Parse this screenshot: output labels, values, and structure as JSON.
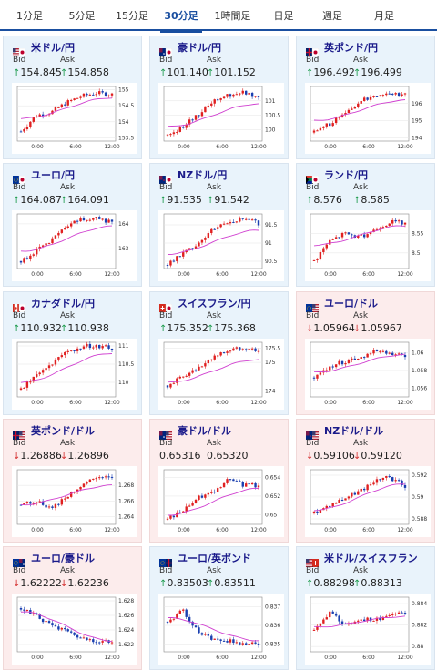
{
  "tabs": [
    {
      "label": "1分足",
      "active": false
    },
    {
      "label": "5分足",
      "active": false
    },
    {
      "label": "15分足",
      "active": false
    },
    {
      "label": "30分足",
      "active": true
    },
    {
      "label": "1時間足",
      "active": false
    },
    {
      "label": "日足",
      "active": false
    },
    {
      "label": "週足",
      "active": false
    },
    {
      "label": "月足",
      "active": false
    }
  ],
  "labels": {
    "bid": "Bid",
    "ask": "Ask"
  },
  "colors": {
    "up_arrow": "#1b9a4b",
    "down_arrow": "#d43030",
    "candle_up": "#e02020",
    "candle_down": "#1a3fb0",
    "ma": "#d040d0"
  },
  "pairs": [
    {
      "name": "米ドル/円",
      "theme": "blue",
      "flag": "us-jp",
      "bid": "154.845",
      "ask": "154.858",
      "dir": "up",
      "bid_dir": "up",
      "ask_dir": "up",
      "yticks": [
        "155",
        "154.5",
        "154",
        "153.5"
      ],
      "ymin": 153.4,
      "ymax": 155.1,
      "xticks": [
        "0:00",
        "6:00",
        "12:00"
      ],
      "trend": [
        153.7,
        154.2,
        154.3,
        154.6,
        154.8,
        154.9,
        154.85
      ],
      "ma_from": 154.1,
      "ma_to": 154.75
    },
    {
      "name": "豪ドル/円",
      "theme": "blue",
      "flag": "au-jp",
      "bid": "101.140",
      "ask": "101.152",
      "bid_dir": "up",
      "ask_dir": "up",
      "yticks": [
        "101",
        "100.5",
        "100"
      ],
      "ymin": 99.6,
      "ymax": 101.5,
      "xticks": [
        "0:00",
        "6:00",
        "12:00"
      ],
      "trend": [
        99.8,
        100.1,
        100.5,
        101.0,
        101.2,
        101.3,
        101.15
      ],
      "ma_from": 100.1,
      "ma_to": 100.9
    },
    {
      "name": "英ポンド/円",
      "theme": "blue",
      "flag": "gb-jp",
      "bid": "196.492",
      "ask": "196.499",
      "bid_dir": "up",
      "ask_dir": "up",
      "yticks": [
        "196",
        "195",
        "194"
      ],
      "ymin": 193.8,
      "ymax": 197.0,
      "xticks": [
        "0:00",
        "6:00",
        "12:00"
      ],
      "trend": [
        194.3,
        194.8,
        195.4,
        196.1,
        196.5,
        196.6,
        196.5
      ],
      "ma_from": 195.0,
      "ma_to": 196.2
    },
    {
      "name": "ユーロ/円",
      "theme": "blue",
      "flag": "eu-jp",
      "bid": "164.087",
      "ask": "164.091",
      "bid_dir": "up",
      "ask_dir": "up",
      "yticks": [
        "164",
        "163"
      ],
      "ymin": 162.2,
      "ymax": 164.4,
      "xticks": [
        "0:00",
        "6:00",
        "12:00"
      ],
      "trend": [
        162.5,
        162.9,
        163.3,
        163.9,
        164.2,
        164.2,
        164.09
      ],
      "ma_from": 162.9,
      "ma_to": 163.9
    },
    {
      "name": "NZドル/円",
      "theme": "blue",
      "flag": "nz-jp",
      "bid": "91.535",
      "ask": "91.542",
      "bid_dir": "up",
      "ask_dir": "up",
      "yticks": [
        "91.5",
        "91",
        "90.5"
      ],
      "ymin": 90.3,
      "ymax": 91.8,
      "xticks": [
        "0:00",
        "6:00",
        "12:00"
      ],
      "trend": [
        90.4,
        90.7,
        91.0,
        91.4,
        91.6,
        91.65,
        91.54
      ],
      "ma_from": 90.7,
      "ma_to": 91.35
    },
    {
      "name": "ランド/円",
      "theme": "blue",
      "flag": "za-jp",
      "bid": "8.576",
      "ask": "8.585",
      "bid_dir": "up",
      "ask_dir": "up",
      "yticks": [
        "8.55",
        "8.5"
      ],
      "ymin": 8.46,
      "ymax": 8.6,
      "xticks": [
        "0:00",
        "6:00",
        "12:00"
      ],
      "trend": [
        8.48,
        8.53,
        8.55,
        8.54,
        8.56,
        8.58,
        8.576
      ],
      "ma_from": 8.52,
      "ma_to": 8.57
    },
    {
      "name": "カナダドル/円",
      "theme": "blue",
      "flag": "ca-jp",
      "bid": "110.932",
      "ask": "110.938",
      "bid_dir": "up",
      "ask_dir": "up",
      "yticks": [
        "111",
        "110.5",
        "110"
      ],
      "ymin": 109.6,
      "ymax": 111.1,
      "xticks": [
        "0:00",
        "6:00",
        "12:00"
      ],
      "trend": [
        109.8,
        110.2,
        110.5,
        110.8,
        111.0,
        111.0,
        110.93
      ],
      "ma_from": 110.0,
      "ma_to": 110.8
    },
    {
      "name": "スイスフラン/円",
      "theme": "blue",
      "flag": "ch-jp",
      "bid": "175.352",
      "ask": "175.368",
      "bid_dir": "up",
      "ask_dir": "up",
      "yticks": [
        "175.5",
        "175",
        "174"
      ],
      "ymin": 173.8,
      "ymax": 175.7,
      "xticks": [
        "0:00",
        "6:00",
        "12:00"
      ],
      "trend": [
        174.2,
        174.5,
        174.8,
        175.2,
        175.4,
        175.5,
        175.35
      ],
      "ma_from": 174.3,
      "ma_to": 175.1
    },
    {
      "name": "ユーロ/ドル",
      "theme": "pink",
      "flag": "eu-us",
      "bid": "1.05964",
      "ask": "1.05967",
      "bid_dir": "down",
      "ask_dir": "down",
      "yticks": [
        "1.06",
        "1.058",
        "1.056"
      ],
      "ymin": 1.055,
      "ymax": 1.0612,
      "xticks": [
        "0:00",
        "6:00",
        "12:00"
      ],
      "trend": [
        1.0572,
        1.0585,
        1.059,
        1.0595,
        1.0602,
        1.0598,
        1.0596
      ],
      "ma_from": 1.0578,
      "ma_to": 1.0598
    },
    {
      "name": "英ポンド/ドル",
      "theme": "pink",
      "flag": "gb-us",
      "bid": "1.26886",
      "ask": "1.26896",
      "bid_dir": "down",
      "ask_dir": "down",
      "yticks": [
        "1.268",
        "1.266",
        "1.264"
      ],
      "ymin": 1.263,
      "ymax": 1.27,
      "xticks": [
        "0:00",
        "6:00",
        "12:00"
      ],
      "trend": [
        1.2655,
        1.266,
        1.265,
        1.2665,
        1.268,
        1.269,
        1.2688
      ],
      "ma_from": 1.2655,
      "ma_to": 1.268
    },
    {
      "name": "豪ドル/ドル",
      "theme": "pink",
      "flag": "au-us",
      "bid": "0.65316",
      "ask": "0.65320",
      "bid_dir": "none",
      "ask_dir": "none",
      "yticks": [
        "0.654",
        "0.652",
        "0.65"
      ],
      "ymin": 0.649,
      "ymax": 0.6548,
      "xticks": [
        "0:00",
        "6:00",
        "12:00"
      ],
      "trend": [
        0.6495,
        0.6505,
        0.6518,
        0.6525,
        0.6538,
        0.6532,
        0.6531
      ],
      "ma_from": 0.65,
      "ma_to": 0.6528
    },
    {
      "name": "NZドル/ドル",
      "theme": "pink",
      "flag": "nz-us",
      "bid": "0.59106",
      "ask": "0.59120",
      "bid_dir": "down",
      "ask_dir": "down",
      "yticks": [
        "0.592",
        "0.59",
        "0.588"
      ],
      "ymin": 0.5875,
      "ymax": 0.5925,
      "xticks": [
        "0:00",
        "6:00",
        "12:00"
      ],
      "trend": [
        0.5885,
        0.5893,
        0.5899,
        0.5905,
        0.5915,
        0.5918,
        0.591
      ],
      "ma_from": 0.5888,
      "ma_to": 0.5912
    },
    {
      "name": "ユーロ/豪ドル",
      "theme": "pink",
      "flag": "eu-au",
      "bid": "1.62222",
      "ask": "1.62236",
      "bid_dir": "down",
      "ask_dir": "down",
      "yticks": [
        "1.628",
        "1.626",
        "1.624",
        "1.622"
      ],
      "ymin": 1.621,
      "ymax": 1.6285,
      "xticks": [
        "0:00",
        "6:00",
        "12:00"
      ],
      "trend": [
        1.627,
        1.626,
        1.6245,
        1.6238,
        1.6228,
        1.6225,
        1.6222
      ],
      "ma_from": 1.6265,
      "ma_to": 1.6225
    },
    {
      "name": "ユーロ/英ポンド",
      "theme": "blue",
      "flag": "eu-gb",
      "bid": "0.83503",
      "ask": "0.83511",
      "bid_dir": "up",
      "ask_dir": "up",
      "yticks": [
        "0.837",
        "0.836",
        "0.835"
      ],
      "ymin": 0.8346,
      "ymax": 0.8375,
      "xticks": [
        "0:00",
        "6:00",
        "12:00"
      ],
      "trend": [
        0.8362,
        0.8368,
        0.8357,
        0.8353,
        0.8352,
        0.835,
        0.835
      ],
      "ma_from": 0.8364,
      "ma_to": 0.8352
    },
    {
      "name": "米ドル/スイスフラン",
      "theme": "blue",
      "flag": "us-ch",
      "bid": "0.88298",
      "ask": "0.88313",
      "bid_dir": "up",
      "ask_dir": "up",
      "yticks": [
        "0.884",
        "0.882",
        "0.88"
      ],
      "ymin": 0.8795,
      "ymax": 0.8846,
      "xticks": [
        "0:00",
        "6:00",
        "12:00"
      ],
      "trend": [
        0.8815,
        0.8832,
        0.882,
        0.8826,
        0.8824,
        0.883,
        0.883
      ],
      "ma_from": 0.8818,
      "ma_to": 0.8828
    }
  ]
}
